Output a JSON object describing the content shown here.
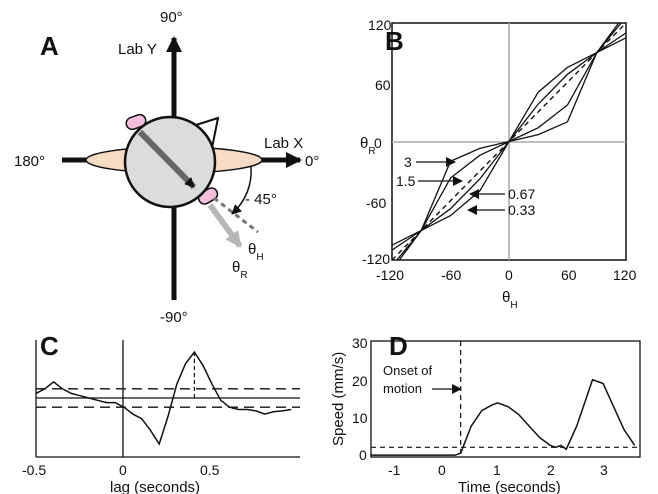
{
  "panels": {
    "A": {
      "label": "A",
      "top": "90°",
      "bottom": "-90°",
      "left": "180°",
      "right": "0°",
      "lab_x": "Lab X",
      "lab_y": "Lab Y",
      "angle": "- 45°",
      "theta": "θ",
      "sub_h": "H",
      "sub_r": "R"
    },
    "B": {
      "label": "B",
      "xlabel": "θ",
      "xlabel_sub": "H",
      "ylabel": "θ",
      "ylabel_sub": "R",
      "xticks": [
        "-120",
        "-60",
        "0",
        "60",
        "120"
      ],
      "yticks": [
        "120",
        "60",
        "0",
        "-60",
        "-120"
      ],
      "annotations": [
        "3",
        "1.5",
        "0.67",
        "0.33"
      ]
    },
    "C": {
      "label": "C",
      "xlabel": "lag (seconds)",
      "xticks": [
        "-0.5",
        "0",
        "0.5"
      ]
    },
    "D": {
      "label": "D",
      "xlabel": "Time (seconds)",
      "ylabel": "Speed (mm/s)",
      "xticks": [
        "-1",
        "0",
        "1",
        "2",
        "3"
      ],
      "yticks": [
        "30",
        "20",
        "10",
        "0"
      ],
      "annotation_line1": "Onset of",
      "annotation_line2": "motion"
    }
  },
  "chart_data": [
    {
      "type": "line",
      "panel": "B",
      "xlim": [
        -120,
        120
      ],
      "ylim": [
        -120,
        120
      ],
      "series": [
        {
          "name": "3",
          "x": [
            -120,
            -90,
            -60,
            -30,
            0,
            30,
            60,
            90,
            120
          ],
          "y": [
            -130,
            -90,
            -20,
            -7,
            0,
            7,
            20,
            90,
            130
          ]
        },
        {
          "name": "1.5",
          "x": [
            -120,
            -90,
            -60,
            -30,
            0,
            30,
            60,
            90,
            120
          ],
          "y": [
            -126,
            -90,
            -37,
            -14,
            0,
            14,
            37,
            90,
            126
          ]
        },
        {
          "name": "0.67",
          "x": [
            -120,
            -90,
            -60,
            -30,
            0,
            30,
            60,
            90,
            120
          ],
          "y": [
            -110,
            -90,
            -68,
            -38,
            0,
            38,
            68,
            90,
            110
          ]
        },
        {
          "name": "0.33",
          "x": [
            -120,
            -90,
            -60,
            -30,
            0,
            30,
            60,
            90,
            120
          ],
          "y": [
            -105,
            -90,
            -75,
            -50,
            0,
            50,
            75,
            90,
            105
          ]
        },
        {
          "x": [
            -120,
            120
          ],
          "y": [
            -120,
            120
          ]
        }
      ]
    },
    {
      "type": "line",
      "panel": "C",
      "xlim": [
        -0.5,
        1.0
      ],
      "x": [
        -0.5,
        -0.45,
        -0.4,
        -0.35,
        -0.3,
        -0.25,
        -0.2,
        -0.15,
        -0.1,
        -0.05,
        0,
        0.05,
        0.1,
        0.15,
        0.2,
        0.25,
        0.3,
        0.35,
        0.4,
        0.45,
        0.5,
        0.55,
        0.6,
        0.65,
        0.7,
        0.75,
        0.8,
        0.85,
        0.9,
        0.95
      ],
      "y": [
        0.1,
        0.2,
        0.35,
        0.2,
        0.1,
        0.05,
        0.0,
        -0.05,
        -0.1,
        -0.1,
        -0.2,
        -0.35,
        -0.45,
        -0.7,
        -1.0,
        -0.4,
        0.3,
        0.75,
        1.0,
        0.7,
        0.3,
        -0.05,
        -0.2,
        -0.25,
        -0.25,
        -0.28,
        -0.35,
        -0.3,
        -0.28,
        -0.25
      ],
      "hlines": [
        0.2,
        0.0,
        -0.2
      ]
    },
    {
      "type": "line",
      "panel": "D",
      "xlim": [
        -1.4,
        3.7
      ],
      "ylim": [
        0,
        30
      ],
      "x": [
        -1.4,
        -1.0,
        -0.5,
        0.0,
        0.2,
        0.3,
        0.5,
        0.7,
        0.9,
        1.0,
        1.2,
        1.4,
        1.6,
        1.8,
        2.0,
        2.1,
        2.2,
        2.3,
        2.5,
        2.7,
        2.8,
        3.0,
        3.2,
        3.4,
        3.6
      ],
      "y": [
        0.5,
        0.5,
        0.5,
        0.5,
        0.5,
        1.0,
        8,
        12,
        13.5,
        14,
        13,
        11,
        8,
        5,
        3,
        2.5,
        3,
        2,
        8,
        16,
        20,
        19,
        13,
        7,
        3
      ],
      "hline": 2.5,
      "onset_x": 0.3
    }
  ]
}
